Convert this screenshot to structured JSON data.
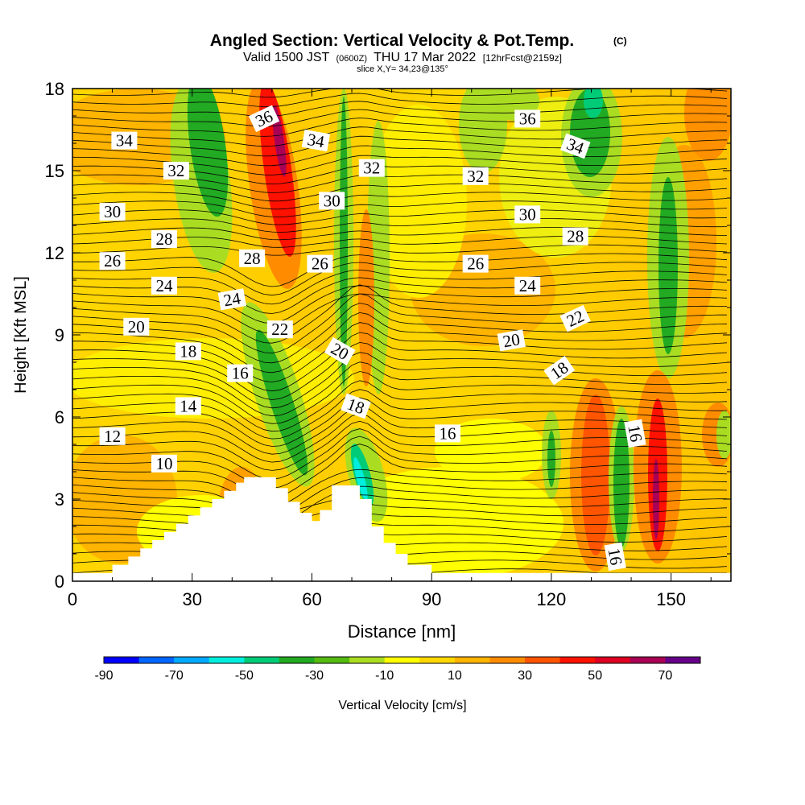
{
  "chart_data": {
    "type": "heatmap",
    "title": "Angled Section: Vertical Velocity & Pot.Temp.",
    "title_mark": "(C)",
    "subtitle_parts": [
      "Valid 1500 JST",
      "(0600Z)",
      "THU 17 Mar 2022",
      "[12hrFcst@2159z]"
    ],
    "slice_label": "slice X,Y= 34,23@135°",
    "xlabel": "Distance [nm]",
    "ylabel": "Height [Kft MSL]",
    "xlim": [
      0,
      165
    ],
    "ylim": [
      0,
      18
    ],
    "x_ticks": [
      "0",
      "30",
      "60",
      "90",
      "120",
      "150"
    ],
    "y_ticks": [
      "0",
      "3",
      "6",
      "9",
      "12",
      "15",
      "18"
    ],
    "colorbar": {
      "label": "Vertical Velocity [cm/s]",
      "tick_labels": [
        "-90",
        "-70",
        "-50",
        "-30",
        "-10",
        "10",
        "30",
        "50",
        "70"
      ],
      "colors": [
        "#0000ff",
        "#0066ff",
        "#00aaff",
        "#00eedd",
        "#00cc77",
        "#22aa22",
        "#55bb11",
        "#aadd22",
        "#ffff00",
        "#ffd700",
        "#ffb400",
        "#ff8c00",
        "#ff5500",
        "#ff1100",
        "#dd0022",
        "#aa0055",
        "#660088"
      ]
    },
    "theta_labels": [
      {
        "x": 13,
        "y": 16.1,
        "text": "34",
        "angle": 0
      },
      {
        "x": 26,
        "y": 15.0,
        "text": "32",
        "angle": 0
      },
      {
        "x": 10,
        "y": 13.5,
        "text": "30",
        "angle": 0
      },
      {
        "x": 23,
        "y": 12.5,
        "text": "28",
        "angle": 0
      },
      {
        "x": 10,
        "y": 11.7,
        "text": "26",
        "angle": 0
      },
      {
        "x": 23,
        "y": 10.8,
        "text": "24",
        "angle": 0
      },
      {
        "x": 16,
        "y": 9.3,
        "text": "20",
        "angle": 0
      },
      {
        "x": 29,
        "y": 8.4,
        "text": "18",
        "angle": 0
      },
      {
        "x": 42,
        "y": 7.6,
        "text": "16",
        "angle": 0
      },
      {
        "x": 29,
        "y": 6.4,
        "text": "14",
        "angle": 0
      },
      {
        "x": 10,
        "y": 5.3,
        "text": "12",
        "angle": 0
      },
      {
        "x": 23,
        "y": 4.3,
        "text": "10",
        "angle": 0
      },
      {
        "x": 48,
        "y": 16.9,
        "text": "36",
        "angle": -25
      },
      {
        "x": 61,
        "y": 16.1,
        "text": "34",
        "angle": 10
      },
      {
        "x": 75,
        "y": 15.1,
        "text": "32",
        "angle": 0
      },
      {
        "x": 65,
        "y": 13.9,
        "text": "30",
        "angle": 0
      },
      {
        "x": 45,
        "y": 11.8,
        "text": "28",
        "angle": 0
      },
      {
        "x": 62,
        "y": 11.6,
        "text": "26",
        "angle": 0
      },
      {
        "x": 40,
        "y": 10.3,
        "text": "24",
        "angle": -10
      },
      {
        "x": 52,
        "y": 9.2,
        "text": "22",
        "angle": 0
      },
      {
        "x": 67,
        "y": 8.4,
        "text": "20",
        "angle": 30
      },
      {
        "x": 71,
        "y": 6.4,
        "text": "18",
        "angle": 20
      },
      {
        "x": 94,
        "y": 5.4,
        "text": "16",
        "angle": 0
      },
      {
        "x": 101,
        "y": 14.8,
        "text": "32",
        "angle": 0
      },
      {
        "x": 114,
        "y": 16.9,
        "text": "36",
        "angle": 0
      },
      {
        "x": 126,
        "y": 15.9,
        "text": "34",
        "angle": 20
      },
      {
        "x": 114,
        "y": 13.4,
        "text": "30",
        "angle": 0
      },
      {
        "x": 126,
        "y": 12.6,
        "text": "28",
        "angle": 0
      },
      {
        "x": 101,
        "y": 11.6,
        "text": "26",
        "angle": 0
      },
      {
        "x": 114,
        "y": 10.8,
        "text": "24",
        "angle": 0
      },
      {
        "x": 126,
        "y": 9.6,
        "text": "22",
        "angle": -25
      },
      {
        "x": 110,
        "y": 8.8,
        "text": "20",
        "angle": -10
      },
      {
        "x": 122,
        "y": 7.7,
        "text": "18",
        "angle": -35
      },
      {
        "x": 141,
        "y": 5.4,
        "text": "16",
        "angle": 80
      },
      {
        "x": 136,
        "y": 0.9,
        "text": "16",
        "angle": 80
      }
    ],
    "terrain_profile": [
      [
        0,
        0.3
      ],
      [
        10,
        0.3
      ],
      [
        10,
        0.6
      ],
      [
        14,
        0.6
      ],
      [
        14,
        0.9
      ],
      [
        17,
        0.9
      ],
      [
        17,
        1.2
      ],
      [
        20,
        1.2
      ],
      [
        20,
        1.5
      ],
      [
        23,
        1.5
      ],
      [
        23,
        1.8
      ],
      [
        26,
        1.8
      ],
      [
        26,
        2.1
      ],
      [
        29,
        2.1
      ],
      [
        29,
        2.4
      ],
      [
        32,
        2.4
      ],
      [
        32,
        2.7
      ],
      [
        35,
        2.7
      ],
      [
        35,
        3.0
      ],
      [
        38,
        3.0
      ],
      [
        38,
        3.3
      ],
      [
        41,
        3.3
      ],
      [
        41,
        3.6
      ],
      [
        43,
        3.6
      ],
      [
        43,
        3.8
      ],
      [
        51,
        3.8
      ],
      [
        51,
        3.4
      ],
      [
        54,
        3.4
      ],
      [
        54,
        2.9
      ],
      [
        57,
        2.9
      ],
      [
        57,
        2.5
      ],
      [
        60,
        2.5
      ],
      [
        60,
        2.2
      ],
      [
        62,
        2.2
      ],
      [
        62,
        2.6
      ],
      [
        65,
        2.6
      ],
      [
        65,
        3.5
      ],
      [
        72,
        3.5
      ],
      [
        72,
        3.0
      ],
      [
        75,
        3.0
      ],
      [
        75,
        2.0
      ],
      [
        78,
        2.0
      ],
      [
        78,
        1.4
      ],
      [
        81,
        1.4
      ],
      [
        81,
        1.0
      ],
      [
        84,
        1.0
      ],
      [
        84,
        0.6
      ],
      [
        90,
        0.6
      ],
      [
        90,
        0.3
      ],
      [
        165,
        0.3
      ]
    ]
  }
}
